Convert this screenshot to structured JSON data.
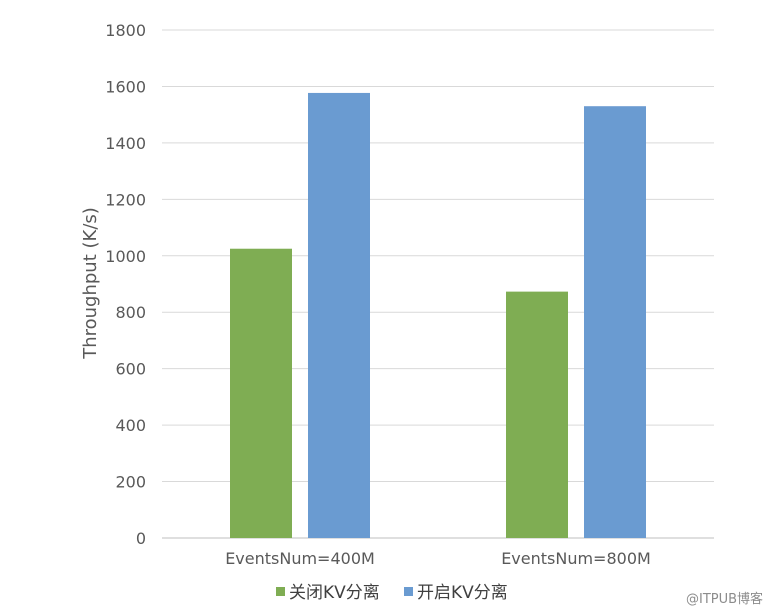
{
  "chart_data": {
    "type": "bar",
    "categories": [
      "EventsNum=400M",
      "EventsNum=800M"
    ],
    "series": [
      {
        "name": "关闭KV分离",
        "values": [
          1025,
          873
        ],
        "color": "#7FAD53"
      },
      {
        "name": "开启KV分离",
        "values": [
          1577,
          1530
        ],
        "color": "#6A9BD1"
      }
    ],
    "ylabel": "Throughput (K/s)",
    "xlabel": "",
    "ylim": [
      0,
      1800
    ],
    "yticks": [
      0,
      200,
      400,
      600,
      800,
      1000,
      1200,
      1400,
      1600,
      1800
    ],
    "grid": true,
    "legend_position": "bottom"
  },
  "watermark": "@ITPUB博客"
}
